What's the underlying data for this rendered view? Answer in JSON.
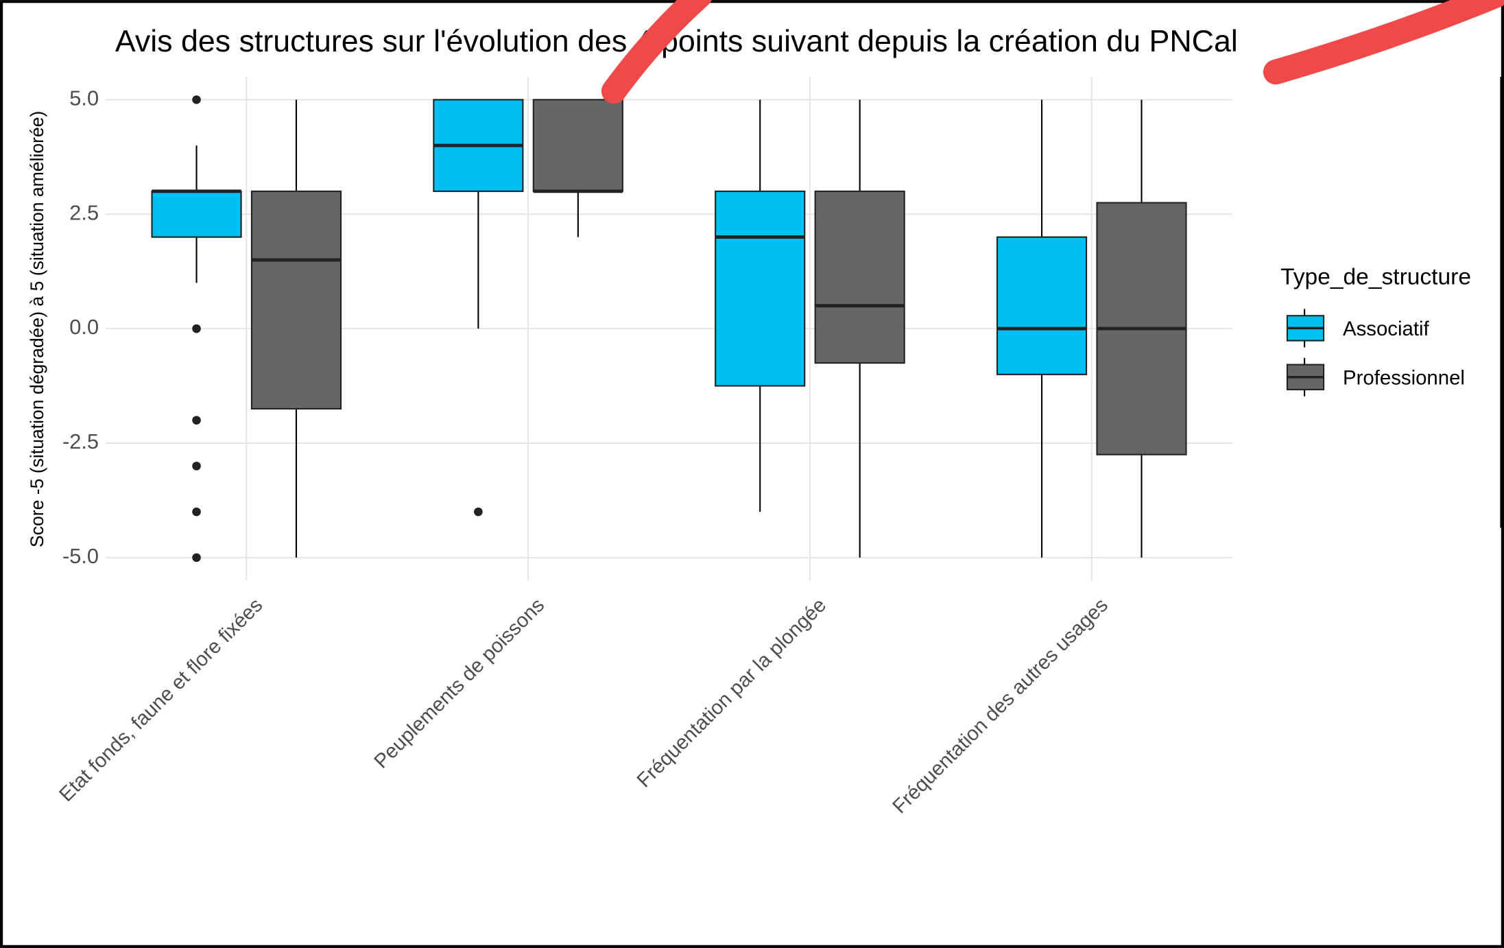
{
  "chart_data": {
    "type": "boxplot",
    "title": "Avis des structures sur l'évolution des 4 points suivant depuis la création du PNCal",
    "y_label": "Score -5 (situation dégradée) à 5 (situation améliorée)",
    "legend_title": "Type_de_structure",
    "categories": [
      "Etat fonds, faune et flore fixées",
      "Peuplements de poissons",
      "Fréquentation par la plongée",
      "Fréquentation des autres usages"
    ],
    "ylim": [
      -5.5,
      5.5
    ],
    "yticks": [
      {
        "value": 5,
        "label": "5.0"
      },
      {
        "value": 2.5,
        "label": "2.5"
      },
      {
        "value": 0,
        "label": "0.0"
      },
      {
        "value": -2.5,
        "label": "-2.5"
      },
      {
        "value": -5,
        "label": "-5.0"
      }
    ],
    "grid": true,
    "series": [
      {
        "name": "Associatif",
        "color": "#00bff2",
        "min": [
          1,
          0,
          -4,
          -5
        ],
        "q1": [
          2,
          3,
          -1.25,
          -1
        ],
        "median": [
          3,
          4,
          2,
          0
        ],
        "q3": [
          3,
          5,
          3,
          2
        ],
        "max": [
          4,
          5,
          5,
          5
        ],
        "outliers": [
          [
            5,
            0,
            -2,
            -3,
            -4,
            -5
          ],
          [
            -4
          ],
          [],
          []
        ]
      },
      {
        "name": "Professionnel",
        "color": "#666666",
        "min": [
          -5,
          2,
          -5,
          -5
        ],
        "q1": [
          -1.75,
          3,
          -0.75,
          -2.75
        ],
        "median": [
          1.5,
          3,
          0.5,
          0
        ],
        "q3": [
          3,
          5,
          3,
          2.75
        ],
        "max": [
          5,
          5,
          5,
          5
        ],
        "outliers": [
          [],
          [],
          [],
          []
        ]
      }
    ]
  }
}
